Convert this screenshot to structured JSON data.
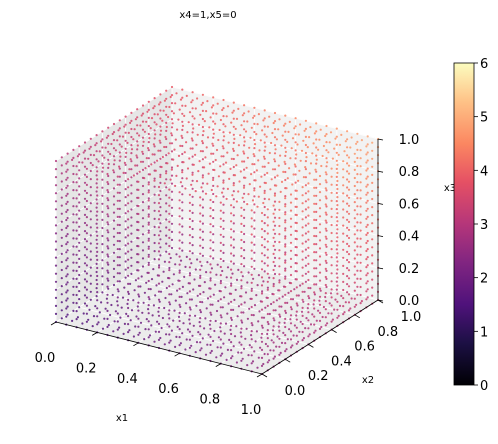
{
  "chart_data": {
    "type": "scatter",
    "projection": "3d",
    "title": "x4=1,x5=0",
    "xlabel": "x1",
    "ylabel": "x2",
    "zlabel": "x3",
    "xlim": [
      0,
      1
    ],
    "ylim": [
      0,
      1
    ],
    "zlim": [
      0,
      1
    ],
    "x_ticks": [
      "0.0",
      "0.2",
      "0.4",
      "0.6",
      "0.8",
      "1.0"
    ],
    "y_ticks": [
      "0.0",
      "0.2",
      "0.4",
      "0.6",
      "0.8",
      "1.0"
    ],
    "z_ticks": [
      "0.0",
      "0.2",
      "0.4",
      "0.6",
      "0.8",
      "1.0"
    ],
    "grid": true,
    "colormap": "magma",
    "colorbar": {
      "min": 0,
      "max": 6,
      "ticks": [
        "0",
        "1",
        "2",
        "3",
        "4",
        "5",
        "6"
      ]
    },
    "grid_resolution": 0.05,
    "color_value_range": [
      1.4,
      4.9
    ]
  }
}
